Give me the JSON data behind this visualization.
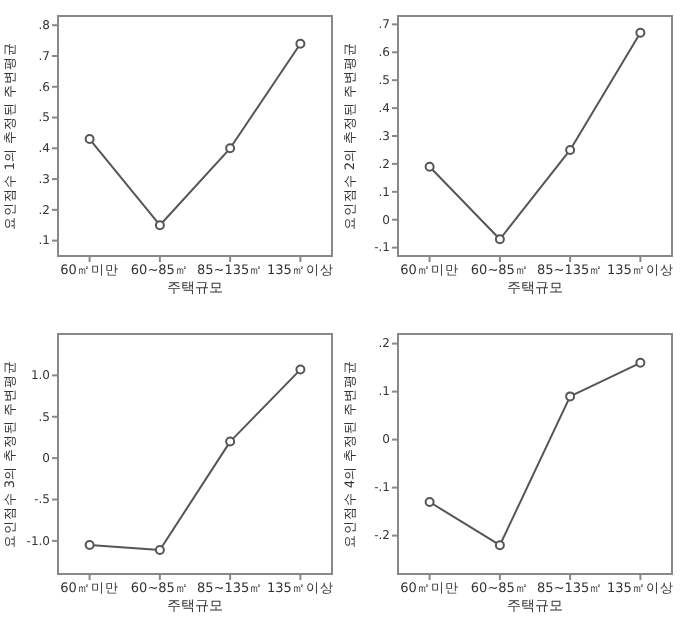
{
  "chart_data": [
    {
      "type": "line",
      "xlabel": "주택규모",
      "ylabel": "요인점수 1의 추정된 주변평균",
      "categories": [
        "60㎡미만",
        "60~85㎡",
        "85~135㎡",
        "135㎡이상"
      ],
      "series": [
        {
          "color": "#555555",
          "values": [
            0.43,
            0.15,
            0.4,
            0.74
          ]
        }
      ],
      "ylim": [
        0.05,
        0.83
      ],
      "yticks": [
        {
          "value": 0.1,
          "label": ".1"
        },
        {
          "value": 0.2,
          "label": ".2"
        },
        {
          "value": 0.3,
          "label": ".3"
        },
        {
          "value": 0.4,
          "label": ".4"
        },
        {
          "value": 0.5,
          "label": ".5"
        },
        {
          "value": 0.6,
          "label": ".6"
        },
        {
          "value": 0.7,
          "label": ".7"
        },
        {
          "value": 0.8,
          "label": ".8"
        }
      ],
      "marker": "circle"
    },
    {
      "type": "line",
      "xlabel": "주택규모",
      "ylabel": "요인점수 2의 추정된 주변평균",
      "categories": [
        "60㎡미만",
        "60~85㎡",
        "85~135㎡",
        "135㎡이상"
      ],
      "series": [
        {
          "color": "#555555",
          "values": [
            0.19,
            -0.07,
            0.25,
            0.67
          ]
        }
      ],
      "ylim": [
        -0.13,
        0.73
      ],
      "yticks": [
        {
          "value": -0.1,
          "label": "-.1"
        },
        {
          "value": 0,
          "label": "0"
        },
        {
          "value": 0.1,
          "label": ".1"
        },
        {
          "value": 0.2,
          "label": ".2"
        },
        {
          "value": 0.3,
          "label": ".3"
        },
        {
          "value": 0.4,
          "label": ".4"
        },
        {
          "value": 0.5,
          "label": ".5"
        },
        {
          "value": 0.6,
          "label": ".6"
        },
        {
          "value": 0.7,
          "label": ".7"
        }
      ],
      "marker": "circle"
    },
    {
      "type": "line",
      "xlabel": "주택규모",
      "ylabel": "요인점수 3의 추정된 주변평균",
      "categories": [
        "60㎡미만",
        "60~85㎡",
        "85~135㎡",
        "135㎡이상"
      ],
      "series": [
        {
          "color": "#555555",
          "values": [
            -1.05,
            -1.11,
            0.2,
            1.07
          ]
        }
      ],
      "ylim": [
        -1.4,
        1.5
      ],
      "yticks": [
        {
          "value": -1,
          "label": "-1.0"
        },
        {
          "value": -0.5,
          "label": "-.5"
        },
        {
          "value": 0,
          "label": "0"
        },
        {
          "value": 0.5,
          "label": ".5"
        },
        {
          "value": 1,
          "label": "1.0"
        }
      ],
      "marker": "circle"
    },
    {
      "type": "line",
      "xlabel": "주택규모",
      "ylabel": "요인점수 4의 추정된 주변평균",
      "categories": [
        "60㎡미만",
        "60~85㎡",
        "85~135㎡",
        "135㎡이상"
      ],
      "series": [
        {
          "color": "#555555",
          "values": [
            -0.13,
            -0.22,
            0.09,
            0.16
          ]
        }
      ],
      "ylim": [
        -0.28,
        0.22
      ],
      "yticks": [
        {
          "value": -0.2,
          "label": "-.2"
        },
        {
          "value": -0.1,
          "label": "-.1"
        },
        {
          "value": 0,
          "label": "0"
        },
        {
          "value": 0.1,
          "label": ".1"
        },
        {
          "value": 0.2,
          "label": ".2"
        }
      ],
      "marker": "circle"
    }
  ]
}
